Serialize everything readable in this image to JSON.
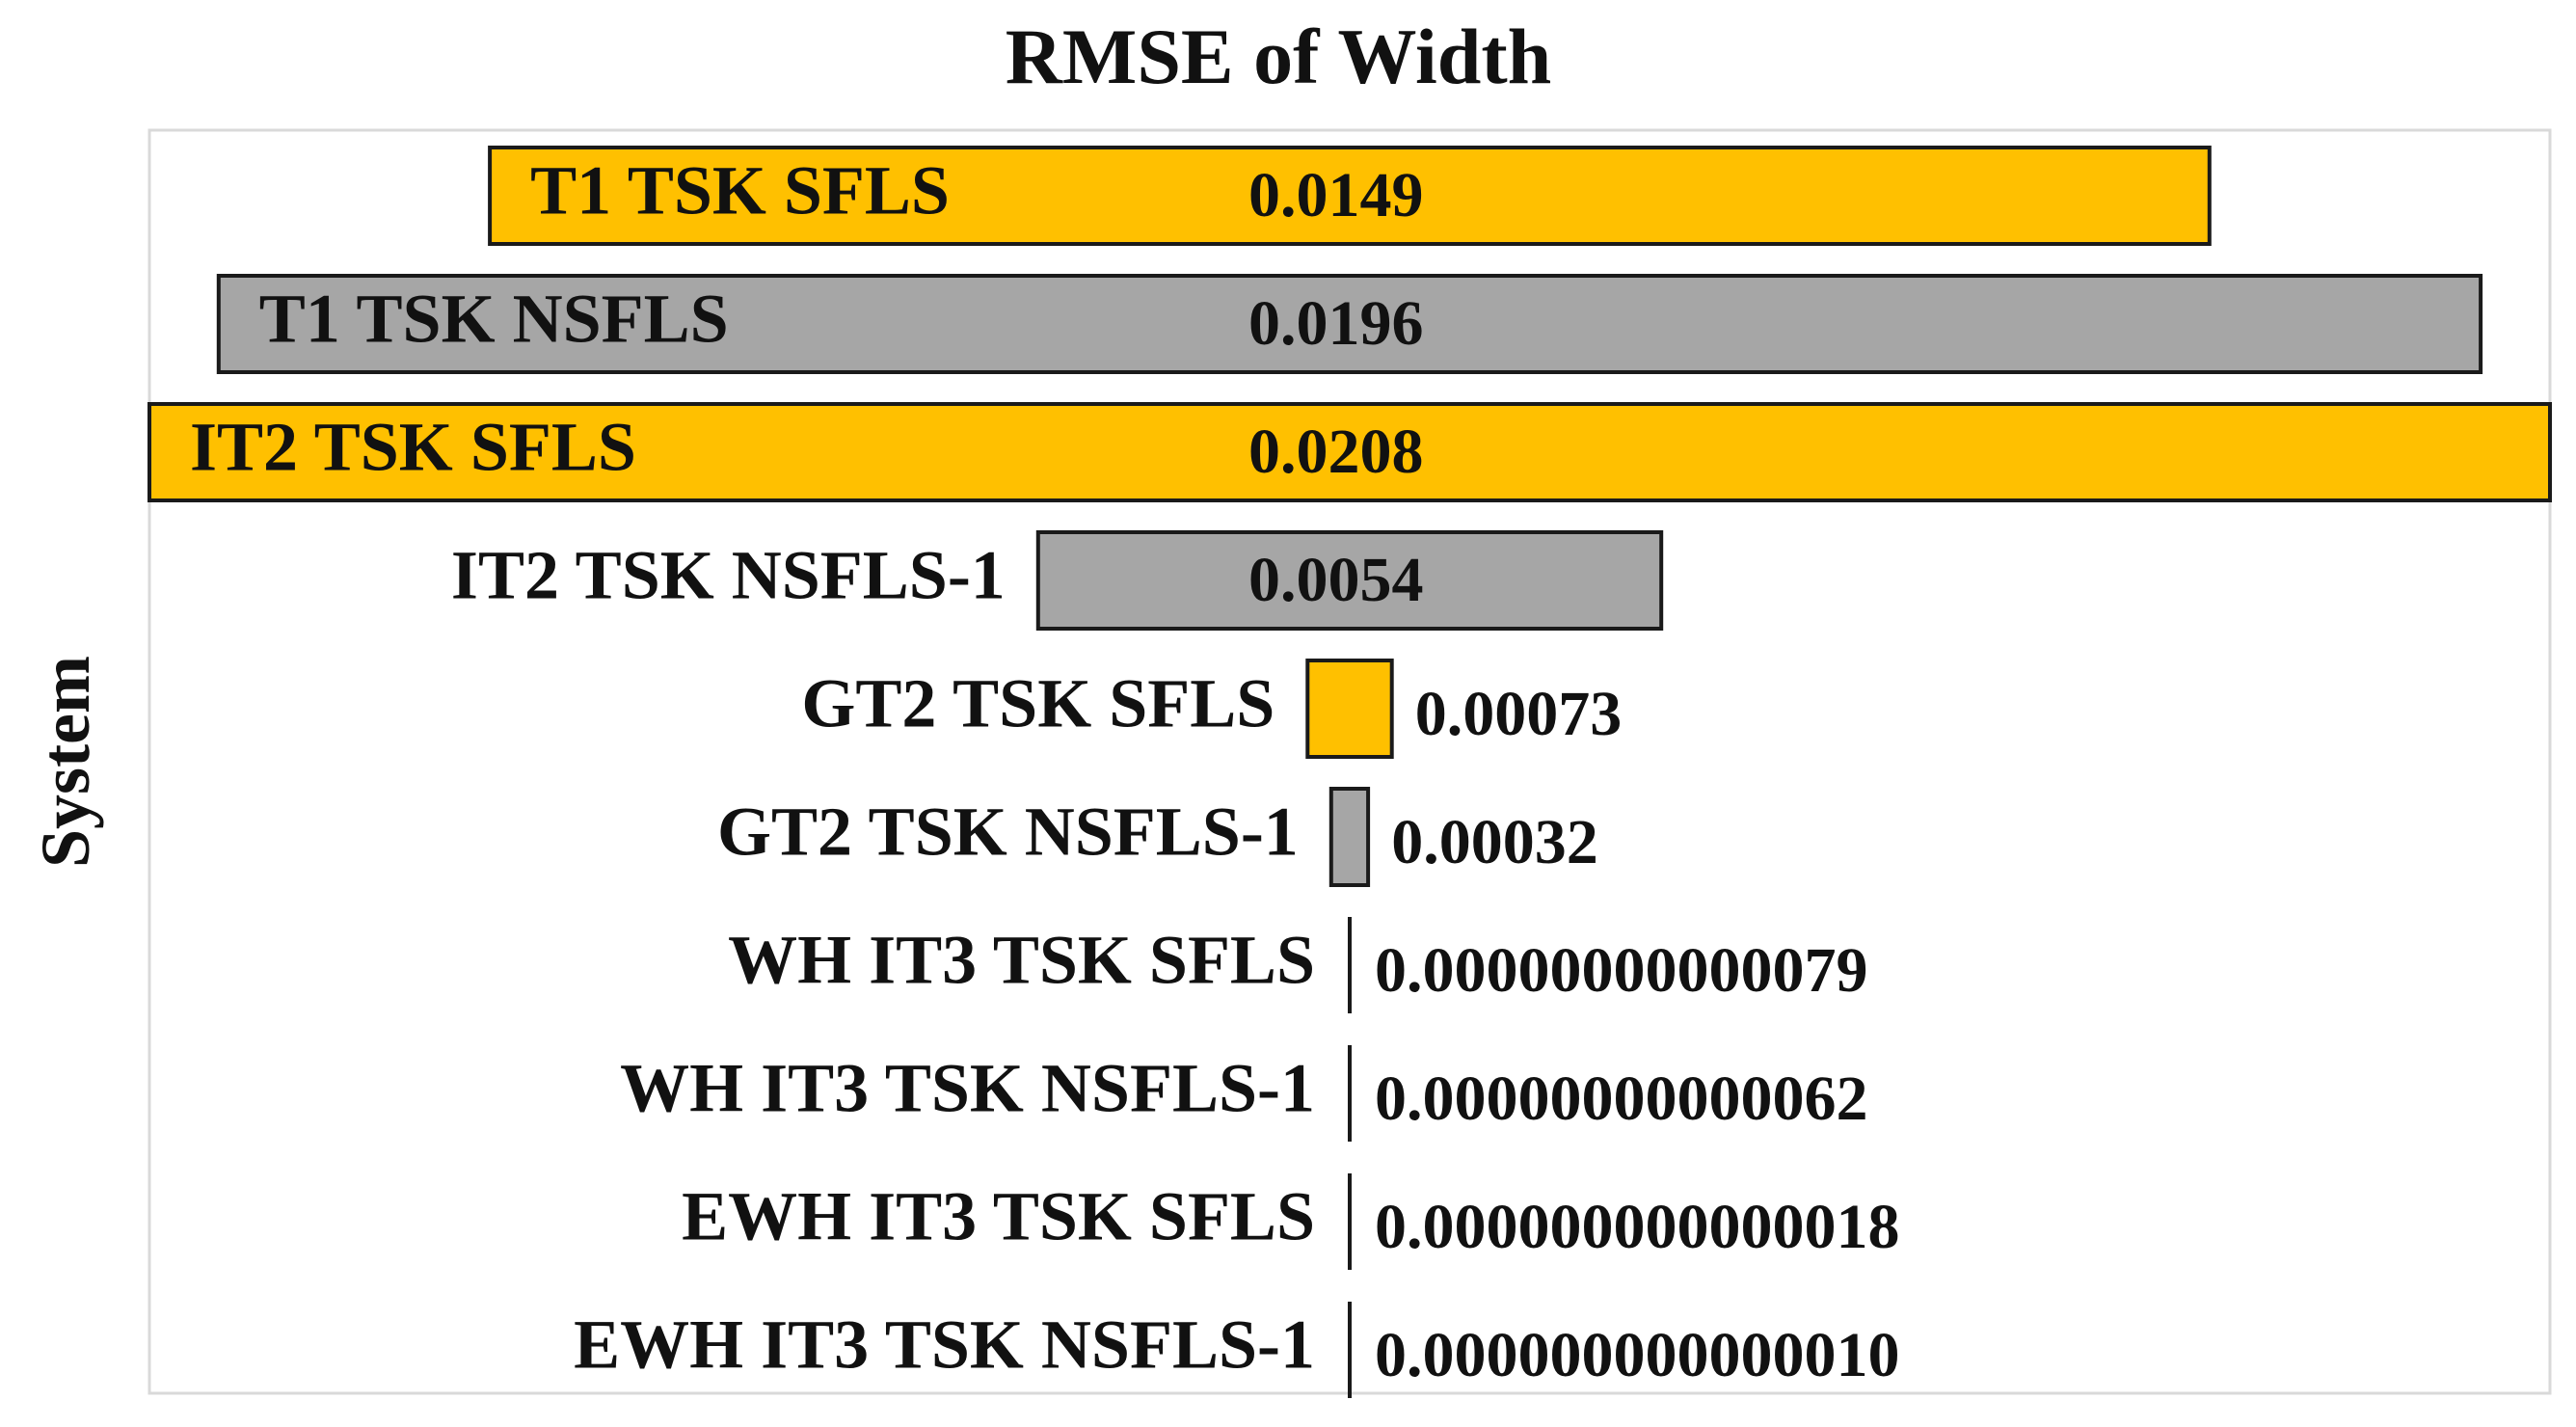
{
  "chart_data": {
    "type": "bar",
    "orientation": "horizontal",
    "layout": "centered-diverging",
    "title": "RMSE of Width",
    "xlabel": "",
    "ylabel": "System",
    "grid": false,
    "legend": "none",
    "categories": [
      "T1 TSK SFLS",
      "T1 TSK NSFLS",
      "IT2 TSK SFLS",
      "IT2 TSK NSFLS-1",
      "GT2 TSK SFLS",
      "GT2 TSK NSFLS-1",
      "WH IT3 TSK SFLS",
      "WH IT3 TSK NSFLS-1",
      "EWH IT3 TSK SFLS",
      "EWH IT3 TSK NSFLS-1"
    ],
    "values": [
      0.0149,
      0.0196,
      0.0208,
      0.0054,
      0.00073,
      0.00032,
      7.9e-13,
      6.2e-13,
      1.8e-14,
      1e-14
    ],
    "value_labels": [
      "0.0149",
      "0.0196",
      "0.0208",
      "0.0054",
      "0.00073",
      "0.00032",
      "0.00000000000079",
      "0.00000000000062",
      "0.000000000000018",
      "0.000000000000010"
    ],
    "bar_colors": [
      "#FFC000",
      "#A6A6A6",
      "#FFC000",
      "#A6A6A6",
      "#FFC000",
      "#A6A6A6",
      "#A6A6A6",
      "#A6A6A6",
      "#A6A6A6",
      "#A6A6A6"
    ],
    "xlim": [
      0,
      0.0208
    ]
  }
}
